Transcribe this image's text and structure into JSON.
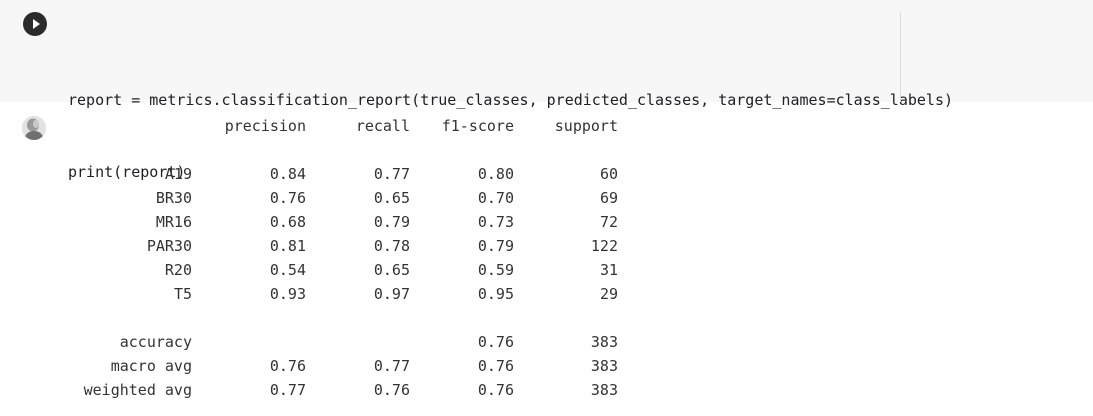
{
  "code_cell": {
    "run_icon": "play-icon",
    "lines": [
      "report = metrics.classification_report(true_classes, predicted_classes, target_names=class_labels)",
      "print(report)"
    ]
  },
  "output": {
    "avatar_icon": "user-avatar",
    "headers": [
      "precision",
      "recall",
      "f1-score",
      "support"
    ],
    "class_rows": [
      {
        "label": "A19",
        "precision": "0.84",
        "recall": "0.77",
        "f1": "0.80",
        "support": "60"
      },
      {
        "label": "BR30",
        "precision": "0.76",
        "recall": "0.65",
        "f1": "0.70",
        "support": "69"
      },
      {
        "label": "MR16",
        "precision": "0.68",
        "recall": "0.79",
        "f1": "0.73",
        "support": "72"
      },
      {
        "label": "PAR30",
        "precision": "0.81",
        "recall": "0.78",
        "f1": "0.79",
        "support": "122"
      },
      {
        "label": "R20",
        "precision": "0.54",
        "recall": "0.65",
        "f1": "0.59",
        "support": "31"
      },
      {
        "label": "T5",
        "precision": "0.93",
        "recall": "0.97",
        "f1": "0.95",
        "support": "29"
      }
    ],
    "summary_rows": [
      {
        "label": "accuracy",
        "precision": "",
        "recall": "",
        "f1": "0.76",
        "support": "383"
      },
      {
        "label": "macro avg",
        "precision": "0.76",
        "recall": "0.77",
        "f1": "0.76",
        "support": "383"
      },
      {
        "label": "weighted avg",
        "precision": "0.77",
        "recall": "0.76",
        "f1": "0.76",
        "support": "383"
      }
    ]
  }
}
